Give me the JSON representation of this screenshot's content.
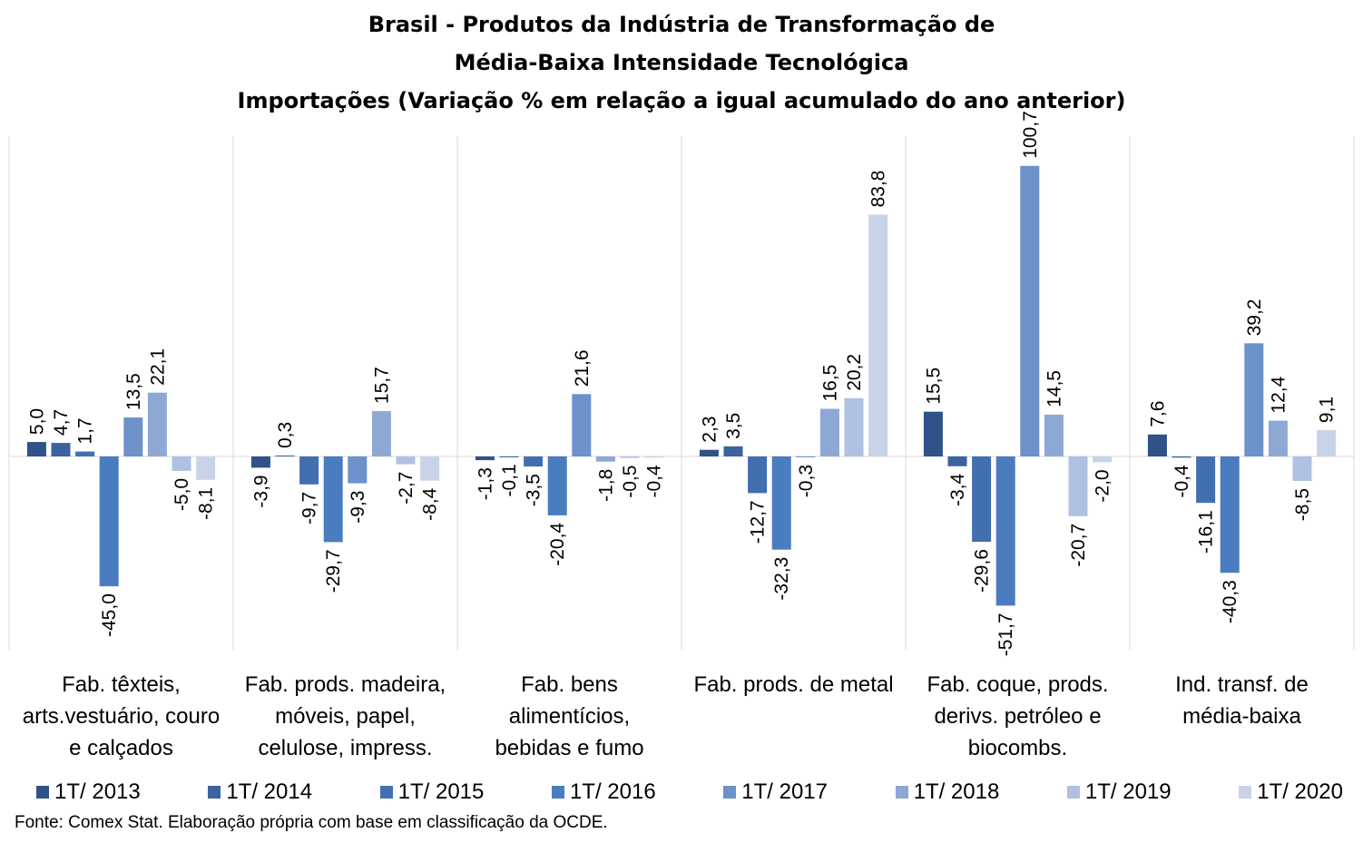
{
  "chart_data": {
    "type": "bar",
    "title": [
      "Brasil - Produtos da Indústria de Transformação de",
      "Média-Baixa Intensidade Tecnológica",
      "Importações (Variação % em relação a igual acumulado do ano anterior)"
    ],
    "categories": [
      [
        "Fab. têxteis,",
        "arts.vestuário, couro",
        "e calçados"
      ],
      [
        "Fab. prods. madeira,",
        "móveis, papel,",
        "celulose, impress."
      ],
      [
        "Fab. bens",
        "alimentícios,",
        "bebidas e fumo"
      ],
      [
        "Fab. prods. de metal"
      ],
      [
        "Fab. coque, prods.",
        "derivs. petróleo e",
        "biocombs."
      ],
      [
        "Ind. transf. de",
        "média-baixa"
      ]
    ],
    "series": [
      {
        "name": "1T/ 2013",
        "color": "#2f5288",
        "values": [
          5.0,
          -3.9,
          -1.3,
          2.3,
          15.5,
          7.6
        ],
        "labels": [
          "5,0",
          "-3,9",
          "-1,3",
          "2,3",
          "15,5",
          "7,6"
        ]
      },
      {
        "name": "1T/ 2014",
        "color": "#3a63a0",
        "values": [
          4.7,
          0.3,
          -0.1,
          3.5,
          -3.4,
          -0.4
        ],
        "labels": [
          "4,7",
          "0,3",
          "-0,1",
          "3,5",
          "-3,4",
          "-0,4"
        ]
      },
      {
        "name": "1T/ 2015",
        "color": "#426fb0",
        "values": [
          1.7,
          -9.7,
          -3.5,
          -12.7,
          -29.6,
          -16.1
        ],
        "labels": [
          "1,7",
          "-9,7",
          "-3,5",
          "-12,7",
          "-29,6",
          "-16,1"
        ]
      },
      {
        "name": "1T/ 2016",
        "color": "#4a7cc0",
        "values": [
          -45.0,
          -29.7,
          -20.4,
          -32.3,
          -51.7,
          -40.3
        ],
        "labels": [
          "-45,0",
          "-29,7",
          "-20,4",
          "-32,3",
          "-51,7",
          "-40,3"
        ]
      },
      {
        "name": "1T/ 2017",
        "color": "#6c92c9",
        "values": [
          13.5,
          -9.3,
          21.6,
          -0.3,
          100.7,
          39.2
        ],
        "labels": [
          "13,5",
          "-9,3",
          "21,6",
          "-0,3",
          "100,7",
          "39,2"
        ]
      },
      {
        "name": "1T/ 2018",
        "color": "#8ea8d4",
        "values": [
          22.1,
          15.7,
          -1.8,
          16.5,
          14.5,
          12.4
        ],
        "labels": [
          "22,1",
          "15,7",
          "-1,8",
          "16,5",
          "14,5",
          "12,4"
        ]
      },
      {
        "name": "1T/ 2019",
        "color": "#afc1e0",
        "values": [
          -5.0,
          -2.7,
          -0.5,
          20.2,
          -20.7,
          -8.5
        ],
        "labels": [
          "-5,0",
          "-2,7",
          "-0,5",
          "20,2",
          "-20,7",
          "-8,5"
        ]
      },
      {
        "name": "1T/ 2020",
        "color": "#c8d3e8",
        "values": [
          -8.1,
          -8.4,
          -0.4,
          83.8,
          -2.0,
          9.1
        ],
        "labels": [
          "-8,1",
          "-8,4",
          "-0,4",
          "83,8",
          "-2,0",
          "9,1"
        ]
      }
    ],
    "ylim": [
      -70,
      110
    ],
    "grid": false,
    "legend": "bottom"
  },
  "source_note": "Fonte: Comex Stat. Elaboração própria com base em classificação da OCDE."
}
